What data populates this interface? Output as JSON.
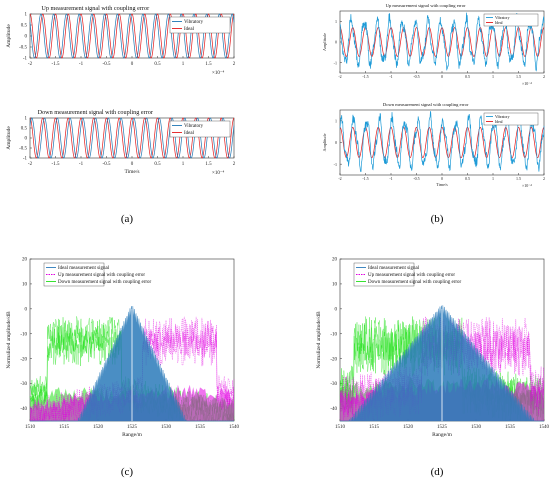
{
  "chart_data": [
    {
      "id": "a1",
      "type": "line",
      "title": "Up measurement signal with coupling error",
      "xlabel": "",
      "ylabel": "Amplitude",
      "xlim": [
        -2,
        2
      ],
      "ylim": [
        -1,
        1
      ],
      "x_ticks": [
        "-2",
        "-1.5",
        "-1",
        "-0.5",
        "0",
        "0.5",
        "1",
        "1.5",
        "2"
      ],
      "y_ticks": [
        "-1",
        "-0.5",
        "0",
        "0.5",
        "1"
      ],
      "x_exponent": "×10⁻⁴",
      "legend": "top-right",
      "series": [
        {
          "name": "Vibratory",
          "color": "#1f77b4",
          "cycles": 16,
          "amplitude": 1.0,
          "phase_shift": 0.9,
          "noise": 0.0
        },
        {
          "name": "Ideal",
          "color": "#e41a1c",
          "cycles": 16,
          "amplitude": 1.0,
          "phase_shift": 0.0,
          "noise": 0.0
        }
      ]
    },
    {
      "id": "a2",
      "type": "line",
      "title": "Down measurement signal with coupling error",
      "xlabel": "Time/s",
      "ylabel": "Amplitude",
      "xlim": [
        -2,
        2
      ],
      "ylim": [
        -1,
        1
      ],
      "x_ticks": [
        "-2",
        "-1.5",
        "-1",
        "-0.5",
        "0",
        "0.5",
        "1",
        "1.5",
        "2"
      ],
      "y_ticks": [
        "-1",
        "-0.5",
        "0",
        "0.5",
        "1"
      ],
      "x_exponent": "×10⁻⁴",
      "legend": "top-right",
      "series": [
        {
          "name": "Vibratory",
          "color": "#1f77b4",
          "cycles": 16,
          "amplitude": 1.0,
          "phase_shift": -0.9,
          "noise": 0.0
        },
        {
          "name": "Ideal",
          "color": "#e41a1c",
          "cycles": 16,
          "amplitude": 1.0,
          "phase_shift": 0.0,
          "noise": 0.0
        }
      ]
    },
    {
      "id": "b1",
      "type": "line",
      "title": "Up measurement signal with coupling error",
      "xlabel": "",
      "ylabel": "Amplitude",
      "xlim": [
        -2,
        2
      ],
      "ylim": [
        -1.5,
        1.5
      ],
      "x_ticks": [
        "-2",
        "-1.5",
        "-1",
        "-0.5",
        "0",
        "0.5",
        "1",
        "1.5",
        "2"
      ],
      "y_ticks": [
        "-1",
        "0",
        "1"
      ],
      "x_exponent": "×10⁻⁴",
      "legend": "top-right",
      "series": [
        {
          "name": "Vibratory",
          "color": "#1f9bd7",
          "cycles": 16,
          "amplitude": 1.0,
          "phase_shift": 0.6,
          "noise": 0.45
        },
        {
          "name": "Ideal",
          "color": "#e41a1c",
          "cycles": 16,
          "amplitude": 0.7,
          "phase_shift": 0.0,
          "noise": 0.0
        }
      ]
    },
    {
      "id": "b2",
      "type": "line",
      "title": "Down measurement signal with coupling error",
      "xlabel": "Time/s",
      "ylabel": "Amplitude",
      "xlim": [
        -2,
        2
      ],
      "ylim": [
        -1.5,
        1.5
      ],
      "x_ticks": [
        "-2",
        "-1.5",
        "-1",
        "-0.5",
        "0",
        "0.5",
        "1",
        "1.5",
        "2"
      ],
      "y_ticks": [
        "-1",
        "0",
        "1"
      ],
      "x_exponent": "×10⁻⁴",
      "legend": "top-right",
      "series": [
        {
          "name": "Vibratory",
          "color": "#1f9bd7",
          "cycles": 16,
          "amplitude": 1.0,
          "phase_shift": -0.6,
          "noise": 0.45
        },
        {
          "name": "Ideal",
          "color": "#e41a1c",
          "cycles": 16,
          "amplitude": 0.7,
          "phase_shift": 0.0,
          "noise": 0.0
        }
      ]
    },
    {
      "id": "c",
      "type": "area",
      "title": "",
      "xlabel": "Range/m",
      "ylabel": "Normalized amplitude/dB",
      "xlim": [
        1510,
        1540
      ],
      "ylim": [
        -45,
        20
      ],
      "x_ticks": [
        1510,
        1515,
        1520,
        1525,
        1530,
        1535,
        1540
      ],
      "y_ticks": [
        20,
        10,
        0,
        -10,
        -20,
        -30,
        -40
      ],
      "legend": "top-left",
      "series": [
        {
          "name": "Ideal measurement signal",
          "color": "#2b7bba",
          "peak_x": 1525,
          "style": "solid"
        },
        {
          "name": "Up measurement signal with coupling error",
          "color": "#e100e1",
          "peak_x": 1532,
          "style": "dashed"
        },
        {
          "name": "Down measurement signal with coupling error",
          "color": "#22e01a",
          "peak_x": 1518,
          "style": "solid"
        }
      ]
    },
    {
      "id": "d",
      "type": "area",
      "title": "",
      "xlabel": "Range/m",
      "ylabel": "Normalized amplitude/dB",
      "xlim": [
        1510,
        1540
      ],
      "ylim": [
        -45,
        20
      ],
      "x_ticks": [
        1510,
        1515,
        1520,
        1525,
        1530,
        1535,
        1540
      ],
      "y_ticks": [
        20,
        10,
        0,
        -10,
        -20,
        -30,
        -40
      ],
      "legend": "top-left",
      "series": [
        {
          "name": "Ideal measurement signal",
          "color": "#2b7bba",
          "peak_x": 1525,
          "style": "solid"
        },
        {
          "name": "Up measurement signal with coupling error",
          "color": "#e100e1",
          "peak_x": 1530,
          "style": "dashed"
        },
        {
          "name": "Down measurement signal with coupling error",
          "color": "#22e01a",
          "peak_x": 1520,
          "style": "solid"
        }
      ]
    }
  ],
  "panel_labels": [
    "(a)",
    "(b)",
    "(c)",
    "(d)"
  ]
}
